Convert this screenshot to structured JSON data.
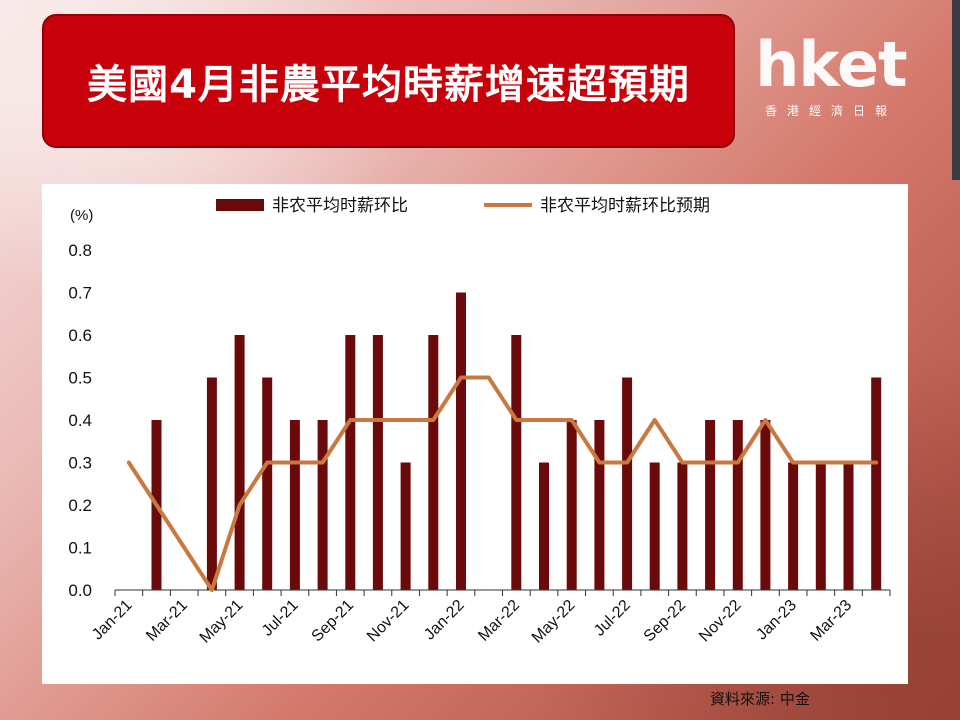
{
  "header": {
    "title": "美國4月非農平均時薪增速超預期"
  },
  "logo": {
    "word": "hket",
    "sub": "香港經濟日報"
  },
  "footer": {
    "source": "資料來源: 中金"
  },
  "colors": {
    "title_bg": "#c8000a",
    "bar": "#6b0a0a",
    "line": "#c87840"
  },
  "chart_data": {
    "type": "bar",
    "ylabel": "(%)",
    "ylim": [
      0,
      0.8
    ],
    "yticks": [
      "0.0",
      "0.1",
      "0.2",
      "0.3",
      "0.4",
      "0.5",
      "0.6",
      "0.7",
      "0.8"
    ],
    "x": [
      "Jan-21",
      "Feb-21",
      "Mar-21",
      "Apr-21",
      "May-21",
      "Jun-21",
      "Jul-21",
      "Aug-21",
      "Sep-21",
      "Oct-21",
      "Nov-21",
      "Dec-21",
      "Jan-22",
      "Feb-22",
      "Mar-22",
      "Apr-22",
      "May-22",
      "Jun-22",
      "Jul-22",
      "Aug-22",
      "Sep-22",
      "Oct-22",
      "Nov-22",
      "Dec-22",
      "Jan-23",
      "Feb-23",
      "Mar-23",
      "Apr-23"
    ],
    "xtick_labels": [
      "Jan-21",
      "Mar-21",
      "May-21",
      "Jul-21",
      "Sep-21",
      "Nov-21",
      "Jan-22",
      "Mar-22",
      "May-22",
      "Jul-22",
      "Sep-22",
      "Nov-22",
      "Jan-23",
      "Mar-23"
    ],
    "series": [
      {
        "name": "非农平均时薪环比",
        "type": "bar",
        "values": [
          0.0,
          0.4,
          0.0,
          0.5,
          0.6,
          0.5,
          0.4,
          0.4,
          0.6,
          0.6,
          0.3,
          0.6,
          0.7,
          0.0,
          0.6,
          0.3,
          0.4,
          0.4,
          0.5,
          0.3,
          0.3,
          0.4,
          0.4,
          0.4,
          0.3,
          0.3,
          0.3,
          0.5
        ]
      },
      {
        "name": "非农平均时薪环比预期",
        "type": "line",
        "values": [
          0.3,
          0.2,
          0.1,
          0.0,
          0.2,
          0.3,
          0.3,
          0.3,
          0.4,
          0.4,
          0.4,
          0.4,
          0.5,
          0.5,
          0.4,
          0.4,
          0.4,
          0.3,
          0.3,
          0.4,
          0.3,
          0.3,
          0.3,
          0.4,
          0.3,
          0.3,
          0.3,
          0.3
        ]
      }
    ],
    "legend_position": "top",
    "grid": false
  }
}
